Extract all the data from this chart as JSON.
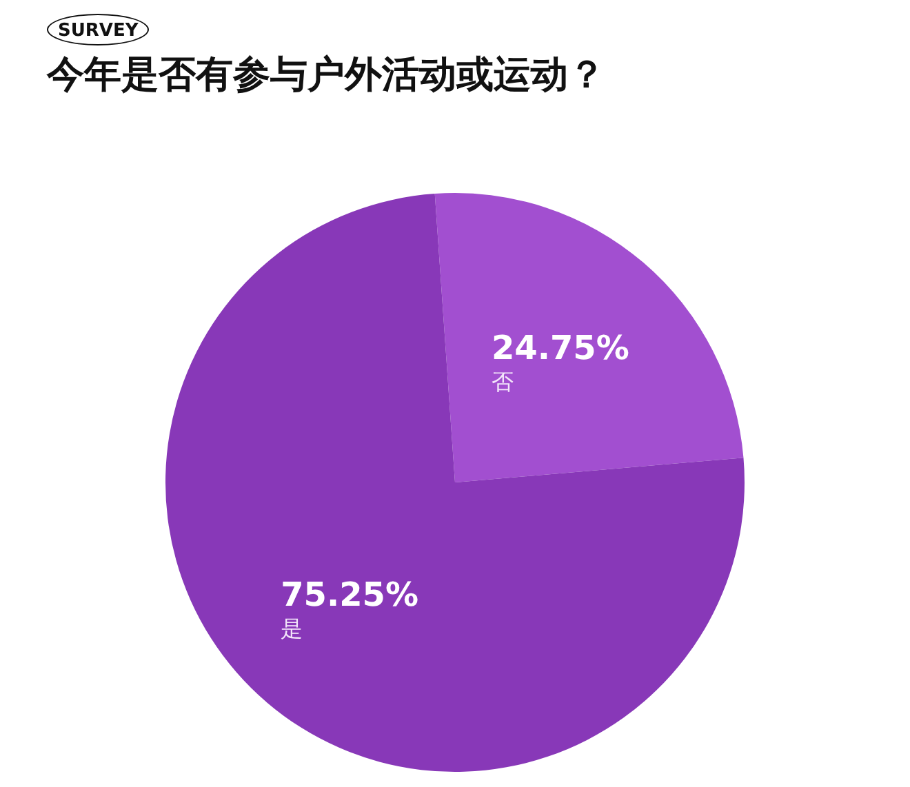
{
  "chart_data": {
    "type": "pie",
    "title": "今年是否有参与户外活动或运动？",
    "annotations": [
      "SURVEY"
    ],
    "categories": [
      "否",
      "是"
    ],
    "values": [
      24.75,
      75.25
    ],
    "colors": [
      "#a24fd0",
      "#8838b8"
    ],
    "value_labels": [
      "24.75%",
      "75.25%"
    ],
    "legend": false
  }
}
